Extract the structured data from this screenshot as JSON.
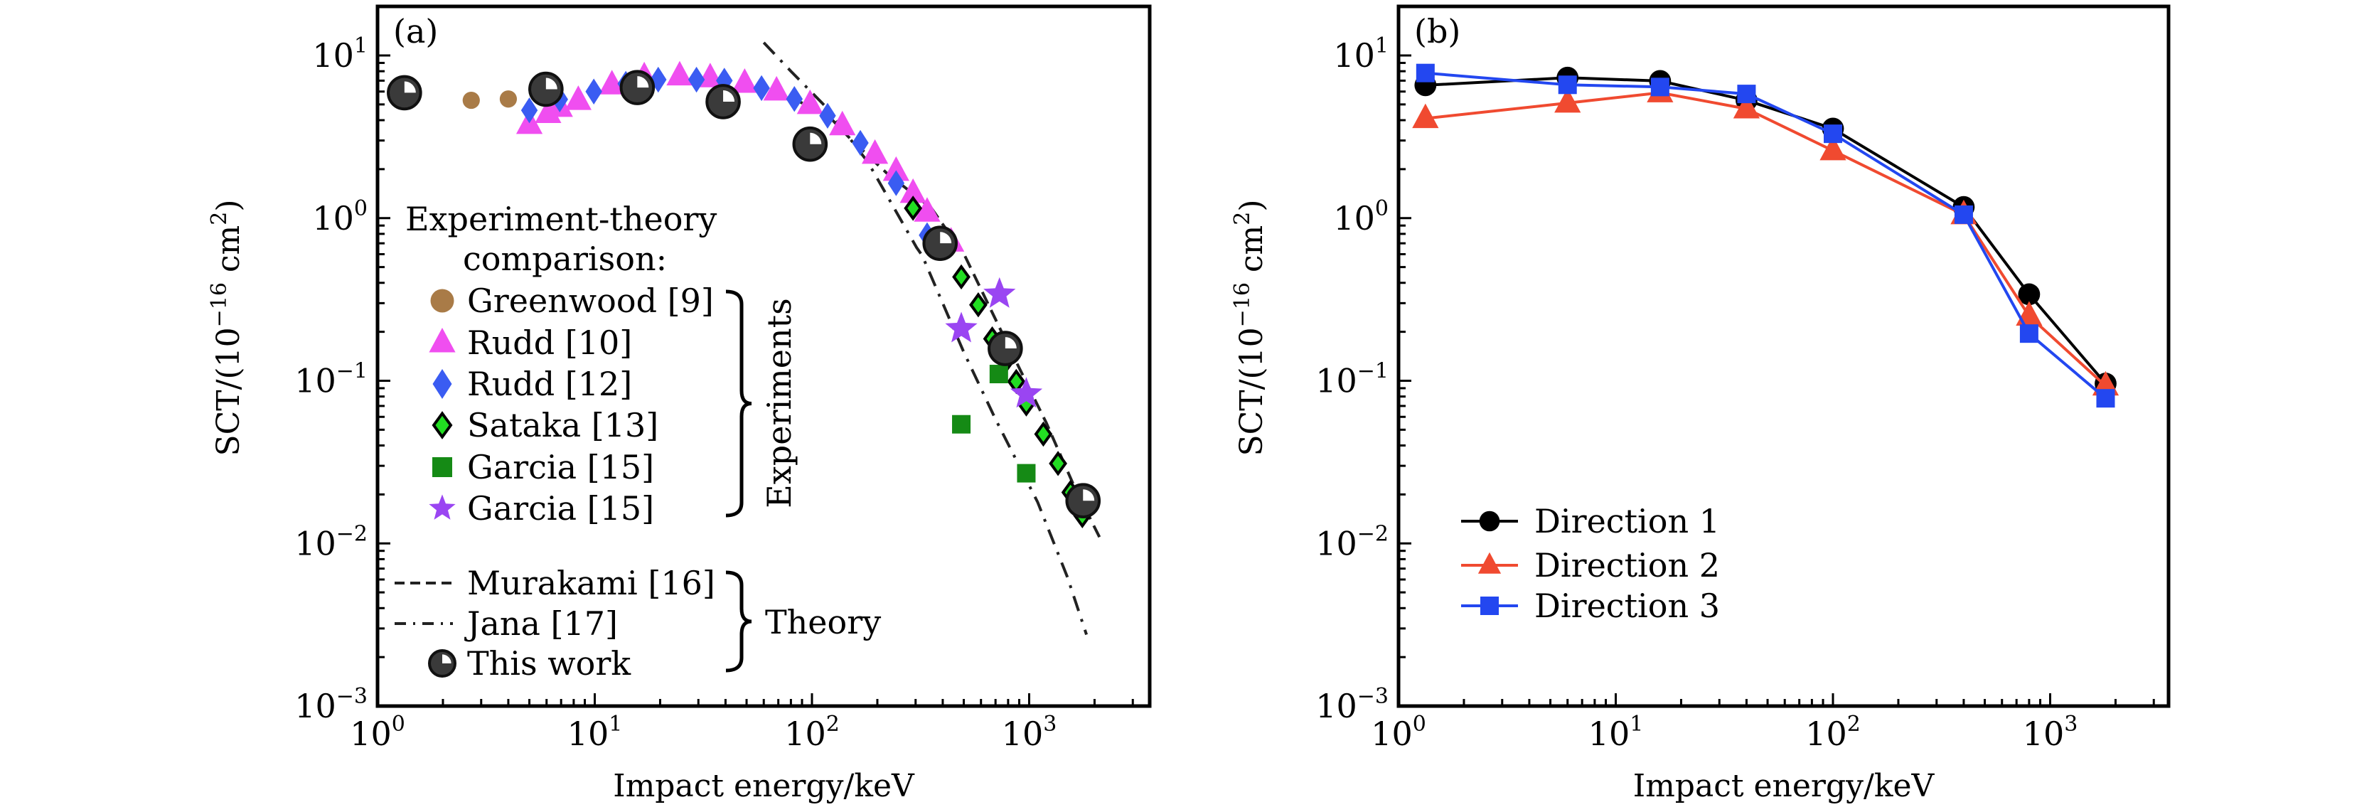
{
  "chart_data": [
    {
      "id": "a",
      "type": "scatter",
      "panel_label": "(a)",
      "xlabel": "Impact energy/keV",
      "ylabel": "SCT/(10^-16 cm^2)",
      "ylabel_parts": {
        "main": "SCT/(10",
        "exp": "−16",
        "unit": " cm",
        "unit_exp": "2",
        "close": ")"
      },
      "xscale": "log",
      "yscale": "log",
      "xlim": [
        1,
        3500
      ],
      "ylim": [
        0.001,
        20
      ],
      "xticks": [
        {
          "base": "10",
          "exp": "0",
          "value": 1
        },
        {
          "base": "10",
          "exp": "1",
          "value": 10
        },
        {
          "base": "10",
          "exp": "2",
          "value": 100
        },
        {
          "base": "10",
          "exp": "3",
          "value": 1000
        }
      ],
      "yticks": [
        {
          "base": "10",
          "exp": "1",
          "value": 10
        },
        {
          "base": "10",
          "exp": "0",
          "value": 1
        },
        {
          "base": "10",
          "exp": "−1",
          "value": 0.1
        },
        {
          "base": "10",
          "exp": "−2",
          "value": 0.01
        },
        {
          "base": "10",
          "exp": "−3",
          "value": 0.001
        }
      ],
      "legend": {
        "title_line1": "Experiment-theory",
        "title_line2": "comparison:",
        "group_experiments": "Experiments",
        "group_theory": "Theory",
        "placement": "center-left"
      },
      "series": [
        {
          "name": "Greenwood [9]",
          "group": "experiment",
          "marker": "circle",
          "color": "#a97b47",
          "x": [
            2.7,
            4.0,
            6.6
          ],
          "y": [
            5.3,
            5.4,
            5.5
          ],
          "yerr_frac": 0.05
        },
        {
          "name": "Rudd [10]",
          "group": "experiment",
          "marker": "triangle",
          "color": "#f04ef0",
          "x": [
            5.0,
            6.1,
            6.9,
            8.4,
            12,
            16.9,
            24.6,
            34,
            49,
            68.7,
            98,
            138,
            195,
            244,
            292,
            339,
            437
          ],
          "y": [
            3.77,
            4.4,
            4.8,
            5.3,
            6.6,
            7.4,
            7.5,
            7.3,
            6.75,
            6.05,
            5.0,
            3.7,
            2.47,
            1.94,
            1.42,
            1.09,
            0.713
          ],
          "yerr_frac": 0.2
        },
        {
          "name": "Rudd [12]",
          "group": "experiment",
          "marker": "diamond",
          "color": "#3a5cf2",
          "x": [
            5.0,
            6.9,
            9.9,
            13.9,
            19.6,
            29.4,
            39.5,
            58.6,
            83,
            118,
            167,
            244,
            339
          ],
          "y": [
            4.6,
            5.37,
            6.0,
            6.7,
            7.1,
            7.1,
            7.0,
            6.3,
            5.4,
            4.26,
            2.9,
            1.64,
            0.785
          ],
          "yerr_frac": 0.1
        },
        {
          "name": "Sataka [13]",
          "group": "experiment",
          "marker": "diamond-outlined",
          "color": "#22dd22",
          "x": [
            292,
            487,
            583,
            676,
            776,
            872,
            970,
            1162,
            1358,
            1550,
            1757
          ],
          "y": [
            1.15,
            0.435,
            0.293,
            0.181,
            0.131,
            0.099,
            0.072,
            0.047,
            0.031,
            0.0206,
            0.0148
          ],
          "yerr_frac": 0.12
        },
        {
          "name": "Garcia [15]",
          "group": "experiment",
          "marker": "square",
          "color": "#158a15",
          "x": [
            487,
            725,
            970
          ],
          "y": [
            0.054,
            0.11,
            0.027
          ],
          "yerr_frac": 0.18
        },
        {
          "name": "Garcia [15]",
          "group": "experiment",
          "marker": "star",
          "color": "#9a45f2",
          "x": [
            487,
            730,
            970
          ],
          "y": [
            0.209,
            0.341,
            0.083
          ],
          "yerr_frac": 0.1
        },
        {
          "name": "Murakami [16]",
          "group": "theory",
          "marker": "none",
          "line": "dashed",
          "color": "#222222",
          "x": [
            80,
            118,
            150,
            220,
            355,
            505,
            800,
            1200,
            1640,
            2163
          ],
          "y": [
            5.5,
            4.3,
            3.08,
            1.9,
            1.15,
            0.588,
            0.165,
            0.055,
            0.0213,
            0.0102
          ]
        },
        {
          "name": "Jana [17]",
          "group": "theory",
          "marker": "none",
          "line": "dashdot",
          "color": "#222222",
          "x": [
            60,
            80,
            114,
            181,
            303,
            322,
            500,
            700,
            1095,
            1500,
            1836
          ],
          "y": [
            12,
            8.0,
            4.94,
            2.21,
            0.66,
            0.588,
            0.15,
            0.058,
            0.0179,
            0.0062,
            0.00275
          ]
        },
        {
          "name": "This work",
          "group": "theory",
          "marker": "ball",
          "color": "#3a3a3a",
          "x": [
            1.33,
            5.96,
            15.7,
            39,
            98,
            389,
            776,
            1770
          ],
          "y": [
            5.9,
            6.2,
            6.35,
            5.2,
            2.85,
            0.7,
            0.158,
            0.0183
          ]
        }
      ]
    },
    {
      "id": "b",
      "type": "line",
      "panel_label": "(b)",
      "xlabel": "Impact energy/keV",
      "ylabel": "SCT/(10^-16 cm^2)",
      "ylabel_parts": {
        "main": "SCT/(10",
        "exp": "−16",
        "unit": " cm",
        "unit_exp": "2",
        "close": ")"
      },
      "xscale": "log",
      "yscale": "log",
      "xlim": [
        1,
        3500
      ],
      "ylim": [
        0.001,
        20
      ],
      "xticks": [
        {
          "base": "10",
          "exp": "0",
          "value": 1
        },
        {
          "base": "10",
          "exp": "1",
          "value": 10
        },
        {
          "base": "10",
          "exp": "2",
          "value": 100
        },
        {
          "base": "10",
          "exp": "3",
          "value": 1000
        }
      ],
      "yticks": [
        {
          "base": "10",
          "exp": "1",
          "value": 10
        },
        {
          "base": "10",
          "exp": "0",
          "value": 1
        },
        {
          "base": "10",
          "exp": "−1",
          "value": 0.1
        },
        {
          "base": "10",
          "exp": "−2",
          "value": 0.01
        },
        {
          "base": "10",
          "exp": "−3",
          "value": 0.001
        }
      ],
      "legend": {
        "placement": "lower-left"
      },
      "x": [
        1.33,
        6,
        16,
        40,
        100,
        400,
        800,
        1800
      ],
      "series": [
        {
          "name": "Direction 1",
          "marker": "circle",
          "color": "#000000",
          "values": [
            6.56,
            7.3,
            6.97,
            5.3,
            3.55,
            1.17,
            0.34,
            0.096
          ]
        },
        {
          "name": "Direction 2",
          "marker": "triangle",
          "color": "#f04a30",
          "values": [
            4.1,
            5.1,
            5.9,
            4.7,
            2.6,
            1.05,
            0.25,
            0.093
          ]
        },
        {
          "name": "Direction 3",
          "marker": "square",
          "color": "#2347f0",
          "values": [
            7.8,
            6.6,
            6.4,
            5.8,
            3.3,
            1.05,
            0.195,
            0.078
          ]
        }
      ]
    }
  ]
}
